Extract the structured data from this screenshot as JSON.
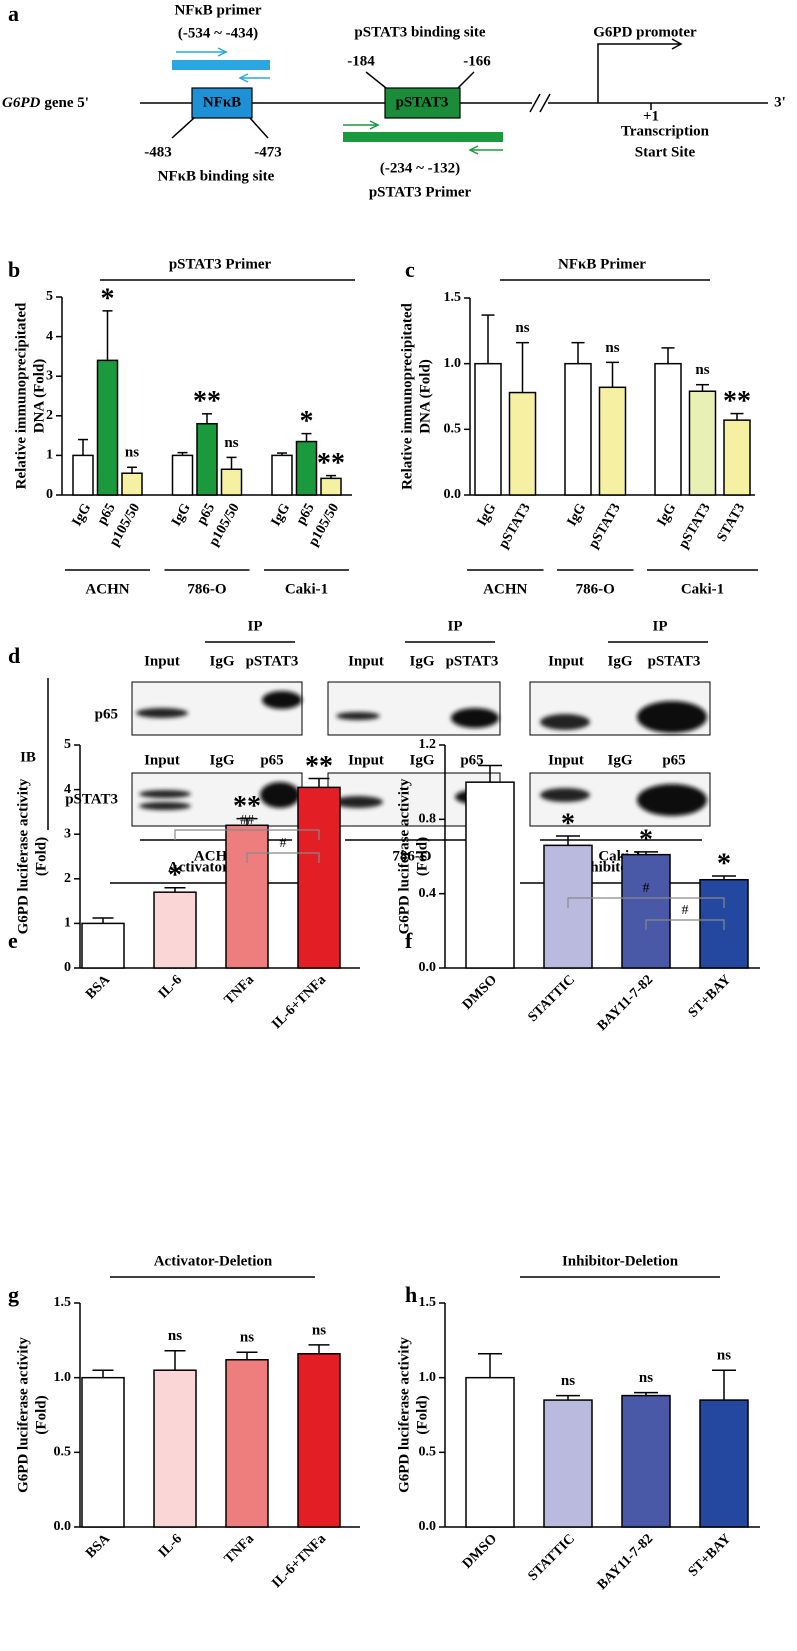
{
  "panel_a": {
    "letter": "a",
    "nfkb_primer": {
      "label": "NFκB primer",
      "range": "(-534 ~ -434)"
    },
    "pstat3_site_label": "pSTAT3 binding site",
    "promoter_label": "G6PD promoter",
    "pstat3_start": "-184",
    "pstat3_end": "-166",
    "gene_name": "G6PD",
    "gene_suffix": "gene 5'",
    "nfkb_box": "NFκB",
    "pstat3_box": "pSTAT3",
    "end_label": "3'",
    "tss_position": "+1",
    "tss_label": [
      "Transcription",
      "Start Site"
    ],
    "nfkb_start": "-483",
    "nfkb_end": "-473",
    "nfkb_site_label": "NFκB binding site",
    "pstat3_primer": {
      "range": "(-234 ~ -132)",
      "label": "pSTAT3 Primer"
    }
  },
  "panel_d": {
    "letter": "d",
    "ip_label": "IP",
    "ib_label": "IB",
    "row_labels": [
      "p65",
      "pSTAT3"
    ],
    "blots": [
      {
        "cell_line": "ACHN",
        "top_lanes": [
          "Input",
          "IgG",
          "pSTAT3"
        ],
        "bottom_lanes": [
          "Input",
          "IgG",
          "p65"
        ]
      },
      {
        "cell_line": "786-O",
        "top_lanes": [
          "Input",
          "IgG",
          "pSTAT3"
        ],
        "bottom_lanes": [
          "Input",
          "IgG",
          "p65"
        ]
      },
      {
        "cell_line": "Caki-1",
        "top_lanes": [
          "Input",
          "IgG",
          "pSTAT3"
        ],
        "bottom_lanes": [
          "Input",
          "IgG",
          "p65"
        ]
      }
    ]
  },
  "chart_data": [
    {
      "type": "grouped-bar",
      "letter": "b",
      "title": "pSTAT3 Primer",
      "title_color": "#1a9a3c",
      "y_label": [
        "Relative immunoprecipitated",
        "DNA (Fold)"
      ],
      "ylim": [
        0,
        5
      ],
      "yticks": [
        0,
        1,
        2,
        3,
        4,
        5
      ],
      "groups": [
        {
          "name": "ACHN",
          "categories": [
            "IgG",
            "p65",
            "p105/50"
          ],
          "values": [
            1.0,
            3.4,
            0.55
          ],
          "errors": [
            0.4,
            1.25,
            0.15
          ],
          "colors": [
            "#ffffff",
            "#1a9a3c",
            "#f6f1a2"
          ],
          "annotations": [
            null,
            "*",
            "ns"
          ]
        },
        {
          "name": "786-O",
          "categories": [
            "IgG",
            "p65",
            "p105/50"
          ],
          "values": [
            1.0,
            1.8,
            0.65
          ],
          "errors": [
            0.07,
            0.25,
            0.3
          ],
          "colors": [
            "#ffffff",
            "#1a9a3c",
            "#f6f1a2"
          ],
          "annotations": [
            null,
            "**",
            "ns"
          ]
        },
        {
          "name": "Caki-1",
          "categories": [
            "IgG",
            "p65",
            "p105/50"
          ],
          "values": [
            1.0,
            1.35,
            0.42
          ],
          "errors": [
            0.06,
            0.2,
            0.07
          ],
          "colors": [
            "#ffffff",
            "#1a9a3c",
            "#f6f1a2"
          ],
          "annotations": [
            null,
            "*",
            "**"
          ]
        }
      ]
    },
    {
      "type": "grouped-bar",
      "letter": "c",
      "title": "NFκB Primer",
      "title_color": "#2aa7e0",
      "y_label": [
        "Relative immunoprecipitated",
        "DNA (Fold)"
      ],
      "ylim": [
        0,
        1.5
      ],
      "yticks": [
        {
          "value": 0,
          "label": "0.0"
        },
        {
          "value": 0.5,
          "label": "0.5"
        },
        {
          "value": 1,
          "label": "1.0"
        },
        {
          "value": 1.5,
          "label": "1.5"
        }
      ],
      "groups": [
        {
          "name": "ACHN",
          "categories": [
            "IgG",
            "pSTAT3"
          ],
          "values": [
            1.0,
            0.78
          ],
          "errors": [
            0.37,
            0.38
          ],
          "colors": [
            "#ffffff",
            "#f6f1a2"
          ],
          "annotations": [
            null,
            "ns"
          ]
        },
        {
          "name": "786-O",
          "categories": [
            "IgG",
            "pSTAT3"
          ],
          "values": [
            1.0,
            0.82
          ],
          "errors": [
            0.16,
            0.19
          ],
          "colors": [
            "#ffffff",
            "#f6f1a2"
          ],
          "annotations": [
            null,
            "ns"
          ]
        },
        {
          "name": "Caki-1",
          "categories": [
            "IgG",
            "pSTAT3",
            "STAT3"
          ],
          "values": [
            1.0,
            0.79,
            0.57
          ],
          "errors": [
            0.12,
            0.05,
            0.05
          ],
          "colors": [
            "#ffffff",
            "#e9f0b4",
            "#f6f1a2"
          ],
          "annotations": [
            null,
            "ns",
            "**"
          ]
        }
      ]
    },
    {
      "type": "bar",
      "letter": "e",
      "title": "Activator-WT",
      "title_color": "#e31e24",
      "y_label": [
        "G6PD luciferase activity",
        "(Fold)"
      ],
      "ylim": [
        0,
        5
      ],
      "yticks": [
        0,
        1,
        2,
        3,
        4,
        5
      ],
      "categories": [
        "BSA",
        "IL-6",
        "TNFa",
        "IL-6+TNFa"
      ],
      "values": [
        1.0,
        1.7,
        3.2,
        4.05
      ],
      "errors": [
        0.12,
        0.1,
        0.15,
        0.2
      ],
      "colors": [
        "#ffffff",
        "#fad6d6",
        "#ee7d7d",
        "#e31e24"
      ],
      "annotations": [
        null,
        "*",
        "**",
        "**"
      ],
      "comparisons": [
        {
          "between": [
            "IL-6",
            "IL-6+TNFa"
          ],
          "label": "##"
        },
        {
          "between": [
            "TNFa",
            "IL-6+TNFa"
          ],
          "label": "#"
        }
      ]
    },
    {
      "type": "bar",
      "letter": "f",
      "title": "Inhibitor-WT",
      "title_color": "#1f2a80",
      "y_label": [
        "G6PD luciferase activity",
        "(Fold)"
      ],
      "ylim": [
        0,
        1.2
      ],
      "yticks": [
        {
          "value": 0,
          "label": "0.0"
        },
        {
          "value": 0.4,
          "label": "0.4"
        },
        {
          "value": 0.8,
          "label": "0.8"
        },
        {
          "value": 1.2,
          "label": "1.2"
        }
      ],
      "categories": [
        "DMSO",
        "STATTIC",
        "BAY11-7-82",
        "ST+BAY"
      ],
      "values": [
        1.0,
        0.66,
        0.61,
        0.475
      ],
      "errors": [
        0.09,
        0.05,
        0.015,
        0.02
      ],
      "colors": [
        "#ffffff",
        "#b9badd",
        "#4a58a8",
        "#2447a0"
      ],
      "annotations": [
        null,
        "*",
        "*",
        "*"
      ],
      "comparisons": [
        {
          "between": [
            "STATTIC",
            "ST+BAY"
          ],
          "label": "#"
        },
        {
          "between": [
            "BAY11-7-82",
            "ST+BAY"
          ],
          "label": "#"
        }
      ]
    },
    {
      "type": "bar",
      "letter": "g",
      "title": "Activator-Deletion",
      "title_color": "#e31e24",
      "y_label": [
        "G6PD luciferase activity",
        "(Fold)"
      ],
      "ylim": [
        0,
        1.5
      ],
      "yticks": [
        {
          "value": 0,
          "label": "0.0"
        },
        {
          "value": 0.5,
          "label": "0.5"
        },
        {
          "value": 1,
          "label": "1.0"
        },
        {
          "value": 1.5,
          "label": "1.5"
        }
      ],
      "categories": [
        "BSA",
        "IL-6",
        "TNFa",
        "IL-6+TNFa"
      ],
      "values": [
        1.0,
        1.05,
        1.12,
        1.16
      ],
      "errors": [
        0.05,
        0.13,
        0.05,
        0.06
      ],
      "colors": [
        "#ffffff",
        "#fad6d6",
        "#ee7d7d",
        "#e31e24"
      ],
      "annotations": [
        null,
        "ns",
        "ns",
        "ns"
      ]
    },
    {
      "type": "bar",
      "letter": "h",
      "title": "Inhibitor-Deletion",
      "title_color": "#1f2a80",
      "y_label": [
        "G6PD luciferase activity",
        "(Fold)"
      ],
      "ylim": [
        0,
        1.5
      ],
      "yticks": [
        {
          "value": 0,
          "label": "0.0"
        },
        {
          "value": 0.5,
          "label": "0.5"
        },
        {
          "value": 1,
          "label": "1.0"
        },
        {
          "value": 1.5,
          "label": "1.5"
        }
      ],
      "categories": [
        "DMSO",
        "STATTIC",
        "BAY11-7-82",
        "ST+BAY"
      ],
      "values": [
        1.0,
        0.85,
        0.88,
        0.85
      ],
      "errors": [
        0.16,
        0.03,
        0.02,
        0.2
      ],
      "colors": [
        "#ffffff",
        "#b9badd",
        "#4a58a8",
        "#2447a0"
      ],
      "annotations": [
        null,
        "ns",
        "ns",
        "ns"
      ]
    }
  ]
}
